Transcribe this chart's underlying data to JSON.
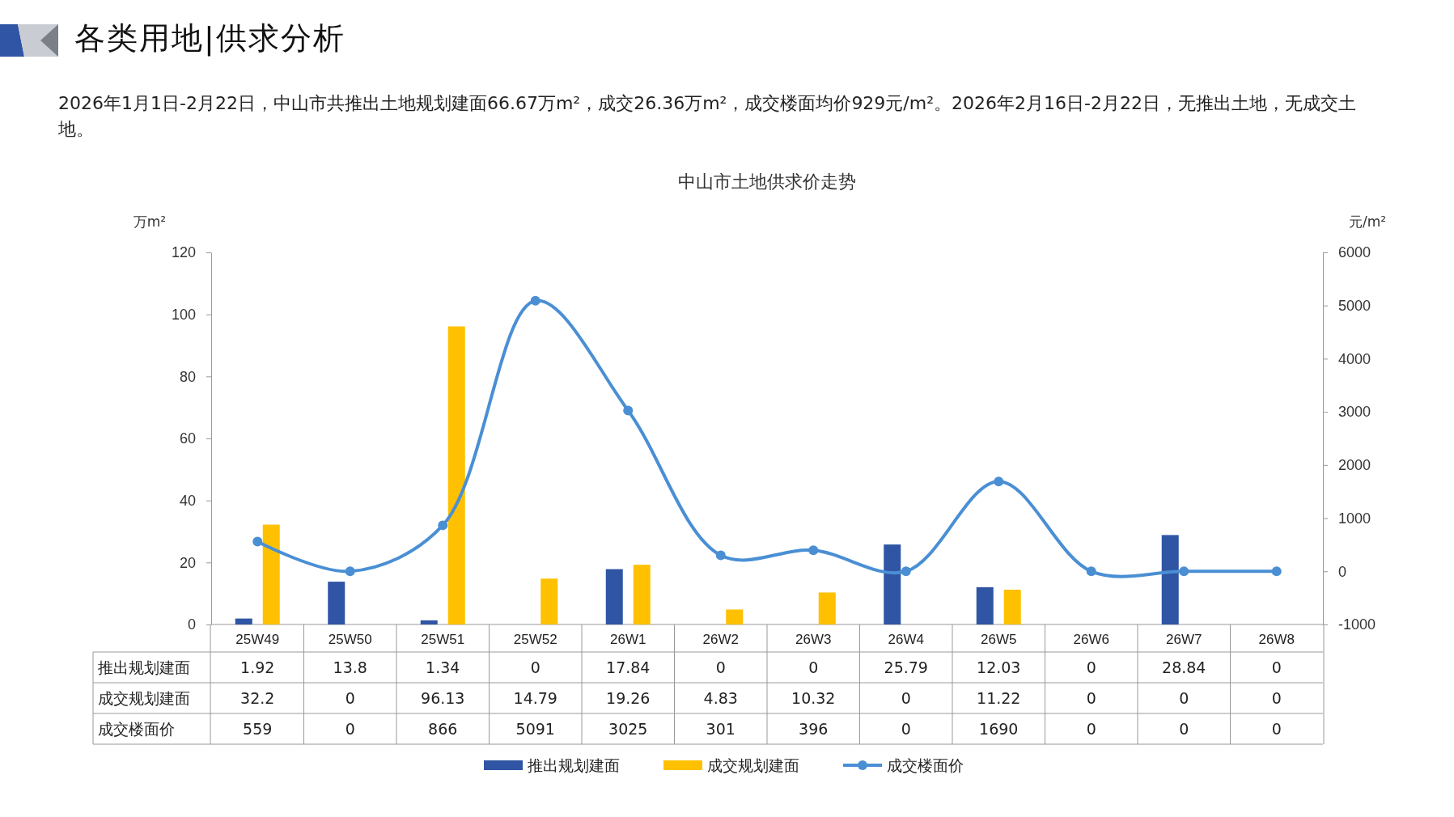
{
  "chart_data": {
    "type": "bar",
    "title": "中山市土地供求价走势",
    "annotations": [
      "各类用地|供求分析",
      "2026年1月1日-2月22日，中山市共推出土地规划建面66.67万m²，成交26.36万m²，成交楼面均价929元/m²。2026年2月16日-2月22日，无推出土地，无成交土地。"
    ],
    "ylabel": "万m²",
    "y2label": "元/m²",
    "categories": [
      "25W49",
      "25W50",
      "25W51",
      "25W52",
      "26W1",
      "26W2",
      "26W3",
      "26W4",
      "26W5",
      "26W6",
      "26W7",
      "26W8"
    ],
    "series": [
      {
        "name": "推出规划建面",
        "color": "#2f55a4",
        "values": [
          1.92,
          13.8,
          1.34,
          0,
          17.84,
          0,
          0,
          25.79,
          12.03,
          0,
          28.84,
          0
        ]
      },
      {
        "name": "成交规划建面",
        "color": "#ffc000",
        "values": [
          32.2,
          0,
          96.13,
          14.79,
          19.26,
          4.83,
          10.32,
          0,
          11.22,
          0,
          0,
          0
        ]
      },
      {
        "name": "成交楼面价",
        "type": "line",
        "axis": "y2",
        "color": "#4a8fd4",
        "values": [
          559,
          0,
          866,
          5091,
          3025,
          301,
          396,
          0,
          1690,
          0,
          0,
          0
        ]
      }
    ],
    "ylim": [
      0,
      120
    ],
    "yticks": [
      0,
      20,
      40,
      60,
      80,
      100,
      120
    ],
    "y2lim": [
      -1000,
      6000
    ],
    "y2ticks": [
      -1000,
      0,
      1000,
      2000,
      3000,
      4000,
      5000,
      6000
    ],
    "data_labels": true,
    "legend": "bottom",
    "marker": "circle"
  }
}
